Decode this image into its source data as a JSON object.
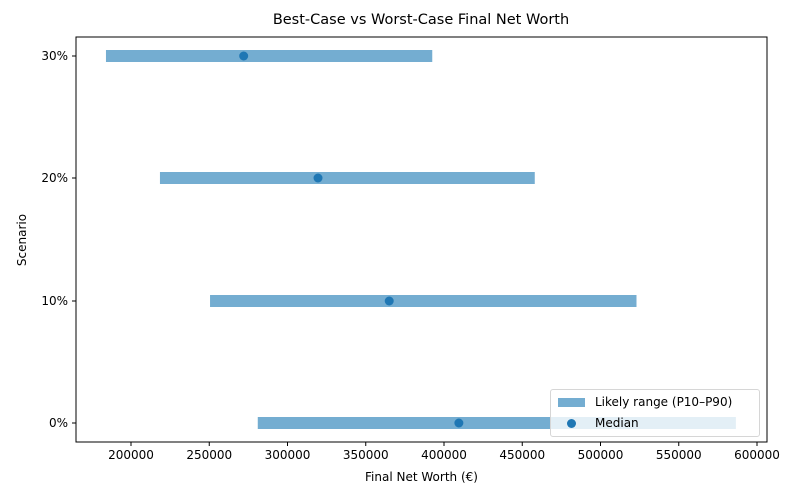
{
  "chart_data": {
    "type": "range-dot",
    "title": "Best-Case vs Worst-Case Final Net Worth",
    "xlabel": "Final Net Worth (€)",
    "ylabel": "Scenario",
    "xlim": [
      166000,
      608000
    ],
    "xticks": [
      200000,
      250000,
      300000,
      350000,
      400000,
      450000,
      500000,
      550000,
      600000
    ],
    "categories": [
      "0%",
      "10%",
      "20%",
      "30%"
    ],
    "series": [
      {
        "name": "Likely range (P10–P90)",
        "type": "range",
        "low": [
          281000,
          250500,
          218500,
          184000
        ],
        "high": [
          586500,
          523000,
          458000,
          392500
        ]
      },
      {
        "name": "Median",
        "type": "scatter",
        "values": [
          409500,
          365000,
          319500,
          272000
        ]
      }
    ],
    "legend_position": "lower right",
    "grid": false,
    "colors": {
      "range": "#74add1",
      "range_alpha": 0.6,
      "median": "#1f77b4"
    }
  },
  "legend": {
    "range_label": "Likely range (P10–P90)",
    "median_label": "Median"
  }
}
